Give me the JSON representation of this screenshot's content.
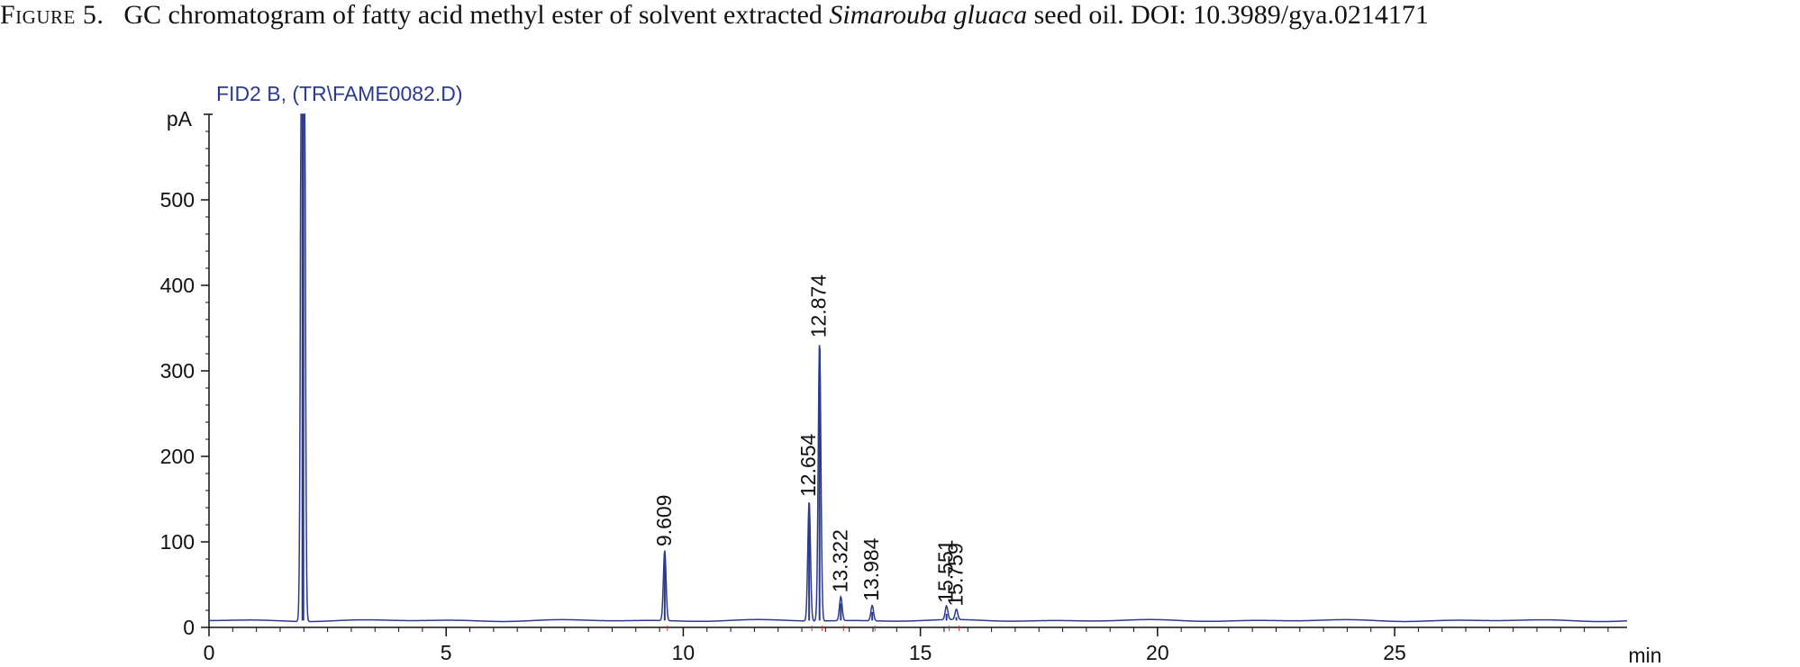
{
  "caption": {
    "label": "Figure 5.",
    "text_before": "GC chromatogram of fatty acid methyl ester of solvent extracted ",
    "species": "Simarouba gluaca",
    "text_after": " seed oil. DOI: 10.3989/gya.0214171"
  },
  "chart_data": {
    "type": "line",
    "signal_label": "FID2 B, (TR\\FAME0082.D)",
    "ylabel": "pA",
    "xlabel": "min",
    "xlim": [
      0,
      29.9
    ],
    "ylim": [
      0,
      600
    ],
    "x_ticks": [
      0,
      5,
      10,
      15,
      20,
      25
    ],
    "y_ticks": [
      0,
      100,
      200,
      300,
      400,
      500
    ],
    "baseline": 8,
    "line_color": "#2b3a8f",
    "solvent_peak": {
      "rt": 1.98,
      "height": 600,
      "clipped": true
    },
    "peaks": [
      {
        "rt": 9.609,
        "label": "9.609",
        "height": 82
      },
      {
        "rt": 12.654,
        "label": "12.654",
        "height": 140
      },
      {
        "rt": 12.874,
        "label": "12.874",
        "height": 326
      },
      {
        "rt": 13.322,
        "label": "13.322",
        "height": 28
      },
      {
        "rt": 13.984,
        "label": "13.984",
        "height": 18
      },
      {
        "rt": 15.551,
        "label": "15.551",
        "height": 16
      },
      {
        "rt": 15.759,
        "label": "15.759",
        "height": 12
      }
    ],
    "grid": false,
    "legend": "none"
  }
}
